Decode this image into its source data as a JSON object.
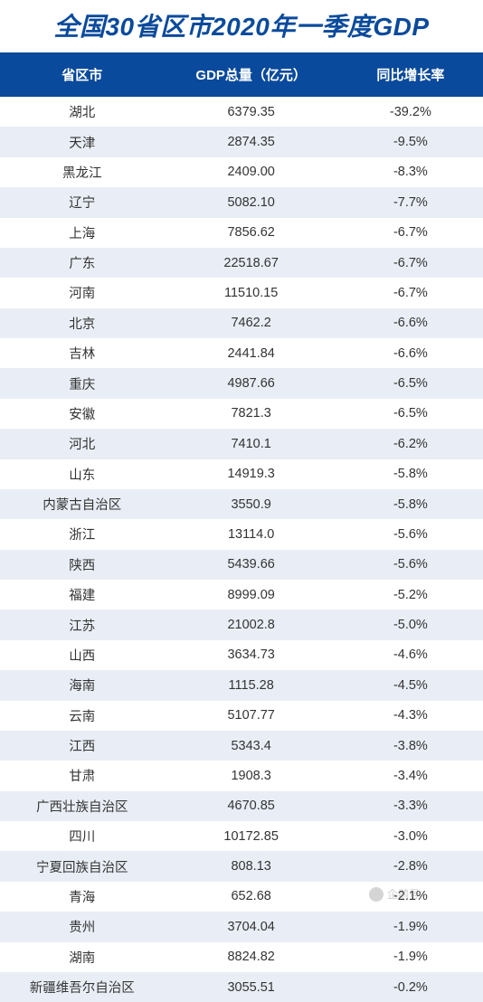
{
  "title": "全国30省区市2020年一季度GDP",
  "table": {
    "type": "table",
    "columns": [
      "省区市",
      "GDP总量（亿元）",
      "同比增长率"
    ],
    "column_widths_pct": [
      34,
      36,
      30
    ],
    "header_bg": "#0a4a9c",
    "header_text_color": "#ffffff",
    "row_odd_bg": "#ffffff",
    "row_even_bg": "#e9eef6",
    "cell_text_color": "#333333",
    "header_fontsize": 15,
    "cell_fontsize": 14.5,
    "rows": [
      [
        "湖北",
        "6379.35",
        "-39.2%"
      ],
      [
        "天津",
        "2874.35",
        "-9.5%"
      ],
      [
        "黑龙江",
        "2409.00",
        "-8.3%"
      ],
      [
        "辽宁",
        "5082.10",
        "-7.7%"
      ],
      [
        "上海",
        "7856.62",
        "-6.7%"
      ],
      [
        "广东",
        "22518.67",
        "-6.7%"
      ],
      [
        "河南",
        "11510.15",
        "-6.7%"
      ],
      [
        "北京",
        "7462.2",
        "-6.6%"
      ],
      [
        "吉林",
        "2441.84",
        "-6.6%"
      ],
      [
        "重庆",
        "4987.66",
        "-6.5%"
      ],
      [
        "安徽",
        "7821.3",
        "-6.5%"
      ],
      [
        "河北",
        "7410.1",
        "-6.2%"
      ],
      [
        "山东",
        "14919.3",
        "-5.8%"
      ],
      [
        "内蒙古自治区",
        "3550.9",
        "-5.8%"
      ],
      [
        "浙江",
        "13114.0",
        "-5.6%"
      ],
      [
        "陕西",
        "5439.66",
        "-5.6%"
      ],
      [
        "福建",
        "8999.09",
        "-5.2%"
      ],
      [
        "江苏",
        "21002.8",
        "-5.0%"
      ],
      [
        "山西",
        "3634.73",
        "-4.6%"
      ],
      [
        "海南",
        "1115.28",
        "-4.5%"
      ],
      [
        "云南",
        "5107.77",
        "-4.3%"
      ],
      [
        "江西",
        "5343.4",
        "-3.8%"
      ],
      [
        "甘肃",
        "1908.3",
        "-3.4%"
      ],
      [
        "广西壮族自治区",
        "4670.85",
        "-3.3%"
      ],
      [
        "四川",
        "10172.85",
        "-3.0%"
      ],
      [
        "宁夏回族自治区",
        "808.13",
        "-2.8%"
      ],
      [
        "青海",
        "652.68",
        "-2.1%"
      ],
      [
        "贵州",
        "3704.04",
        "-1.9%"
      ],
      [
        "湖南",
        "8824.82",
        "-1.9%"
      ],
      [
        "新疆维吾尔自治区",
        "3055.51",
        "-0.2%"
      ]
    ]
  },
  "title_color": "#0a4a9c",
  "title_fontsize": 28,
  "title_font_style": "italic",
  "title_font_weight": 800,
  "background_color": "#ffffff",
  "watermark": {
    "label": "企鹅号",
    "icon": "penguin-icon"
  }
}
